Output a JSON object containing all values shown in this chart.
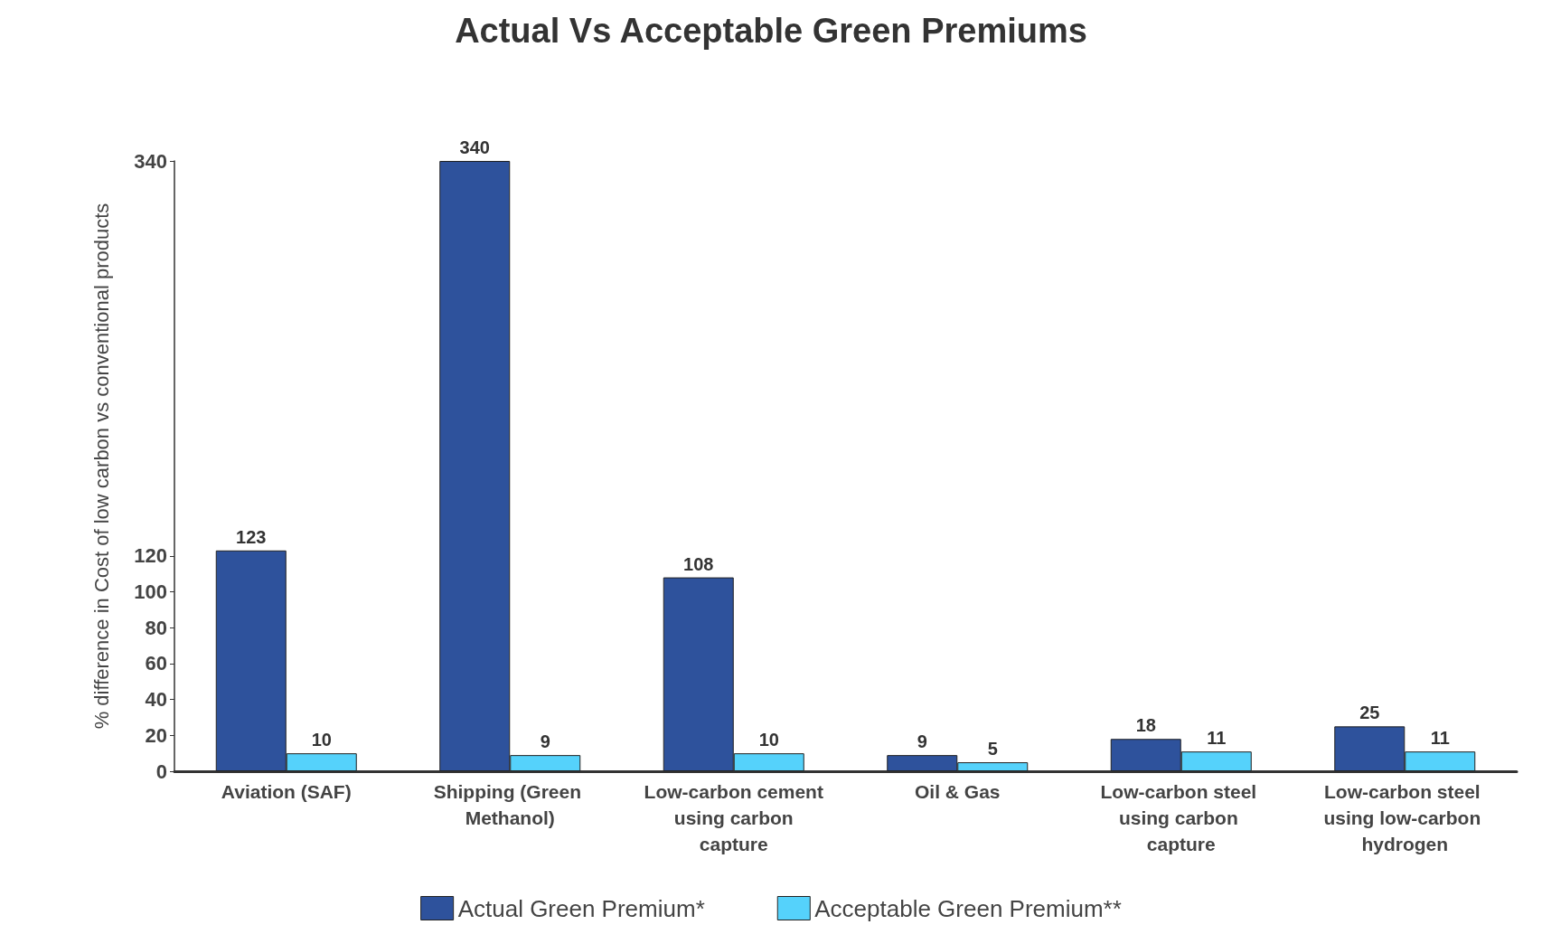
{
  "chart_data": {
    "type": "bar",
    "title": "Actual Vs Acceptable Green Premiums",
    "ylabel": "% difference in Cost of low carbon vs conventional products",
    "categories": [
      "Aviation (SAF)",
      "Shipping (Green Methanol)",
      "Low-carbon cement using carbon capture",
      "Oil & Gas",
      "Low-carbon steel using carbon capture",
      "Low-carbon steel using low-carbon hydrogen"
    ],
    "series": [
      {
        "name": "Actual Green Premium*",
        "color": "#2e529c",
        "values": [
          123,
          340,
          108,
          9,
          18,
          25
        ]
      },
      {
        "name": "Acceptable Green Premium**",
        "color": "#55d2fb",
        "values": [
          10,
          9,
          10,
          5,
          11,
          11
        ]
      }
    ],
    "ylim": [
      0,
      340
    ],
    "yticks": [
      0,
      20,
      40,
      60,
      80,
      100,
      120,
      340
    ],
    "data_labels": true,
    "grid": false,
    "legend": "bottom"
  }
}
